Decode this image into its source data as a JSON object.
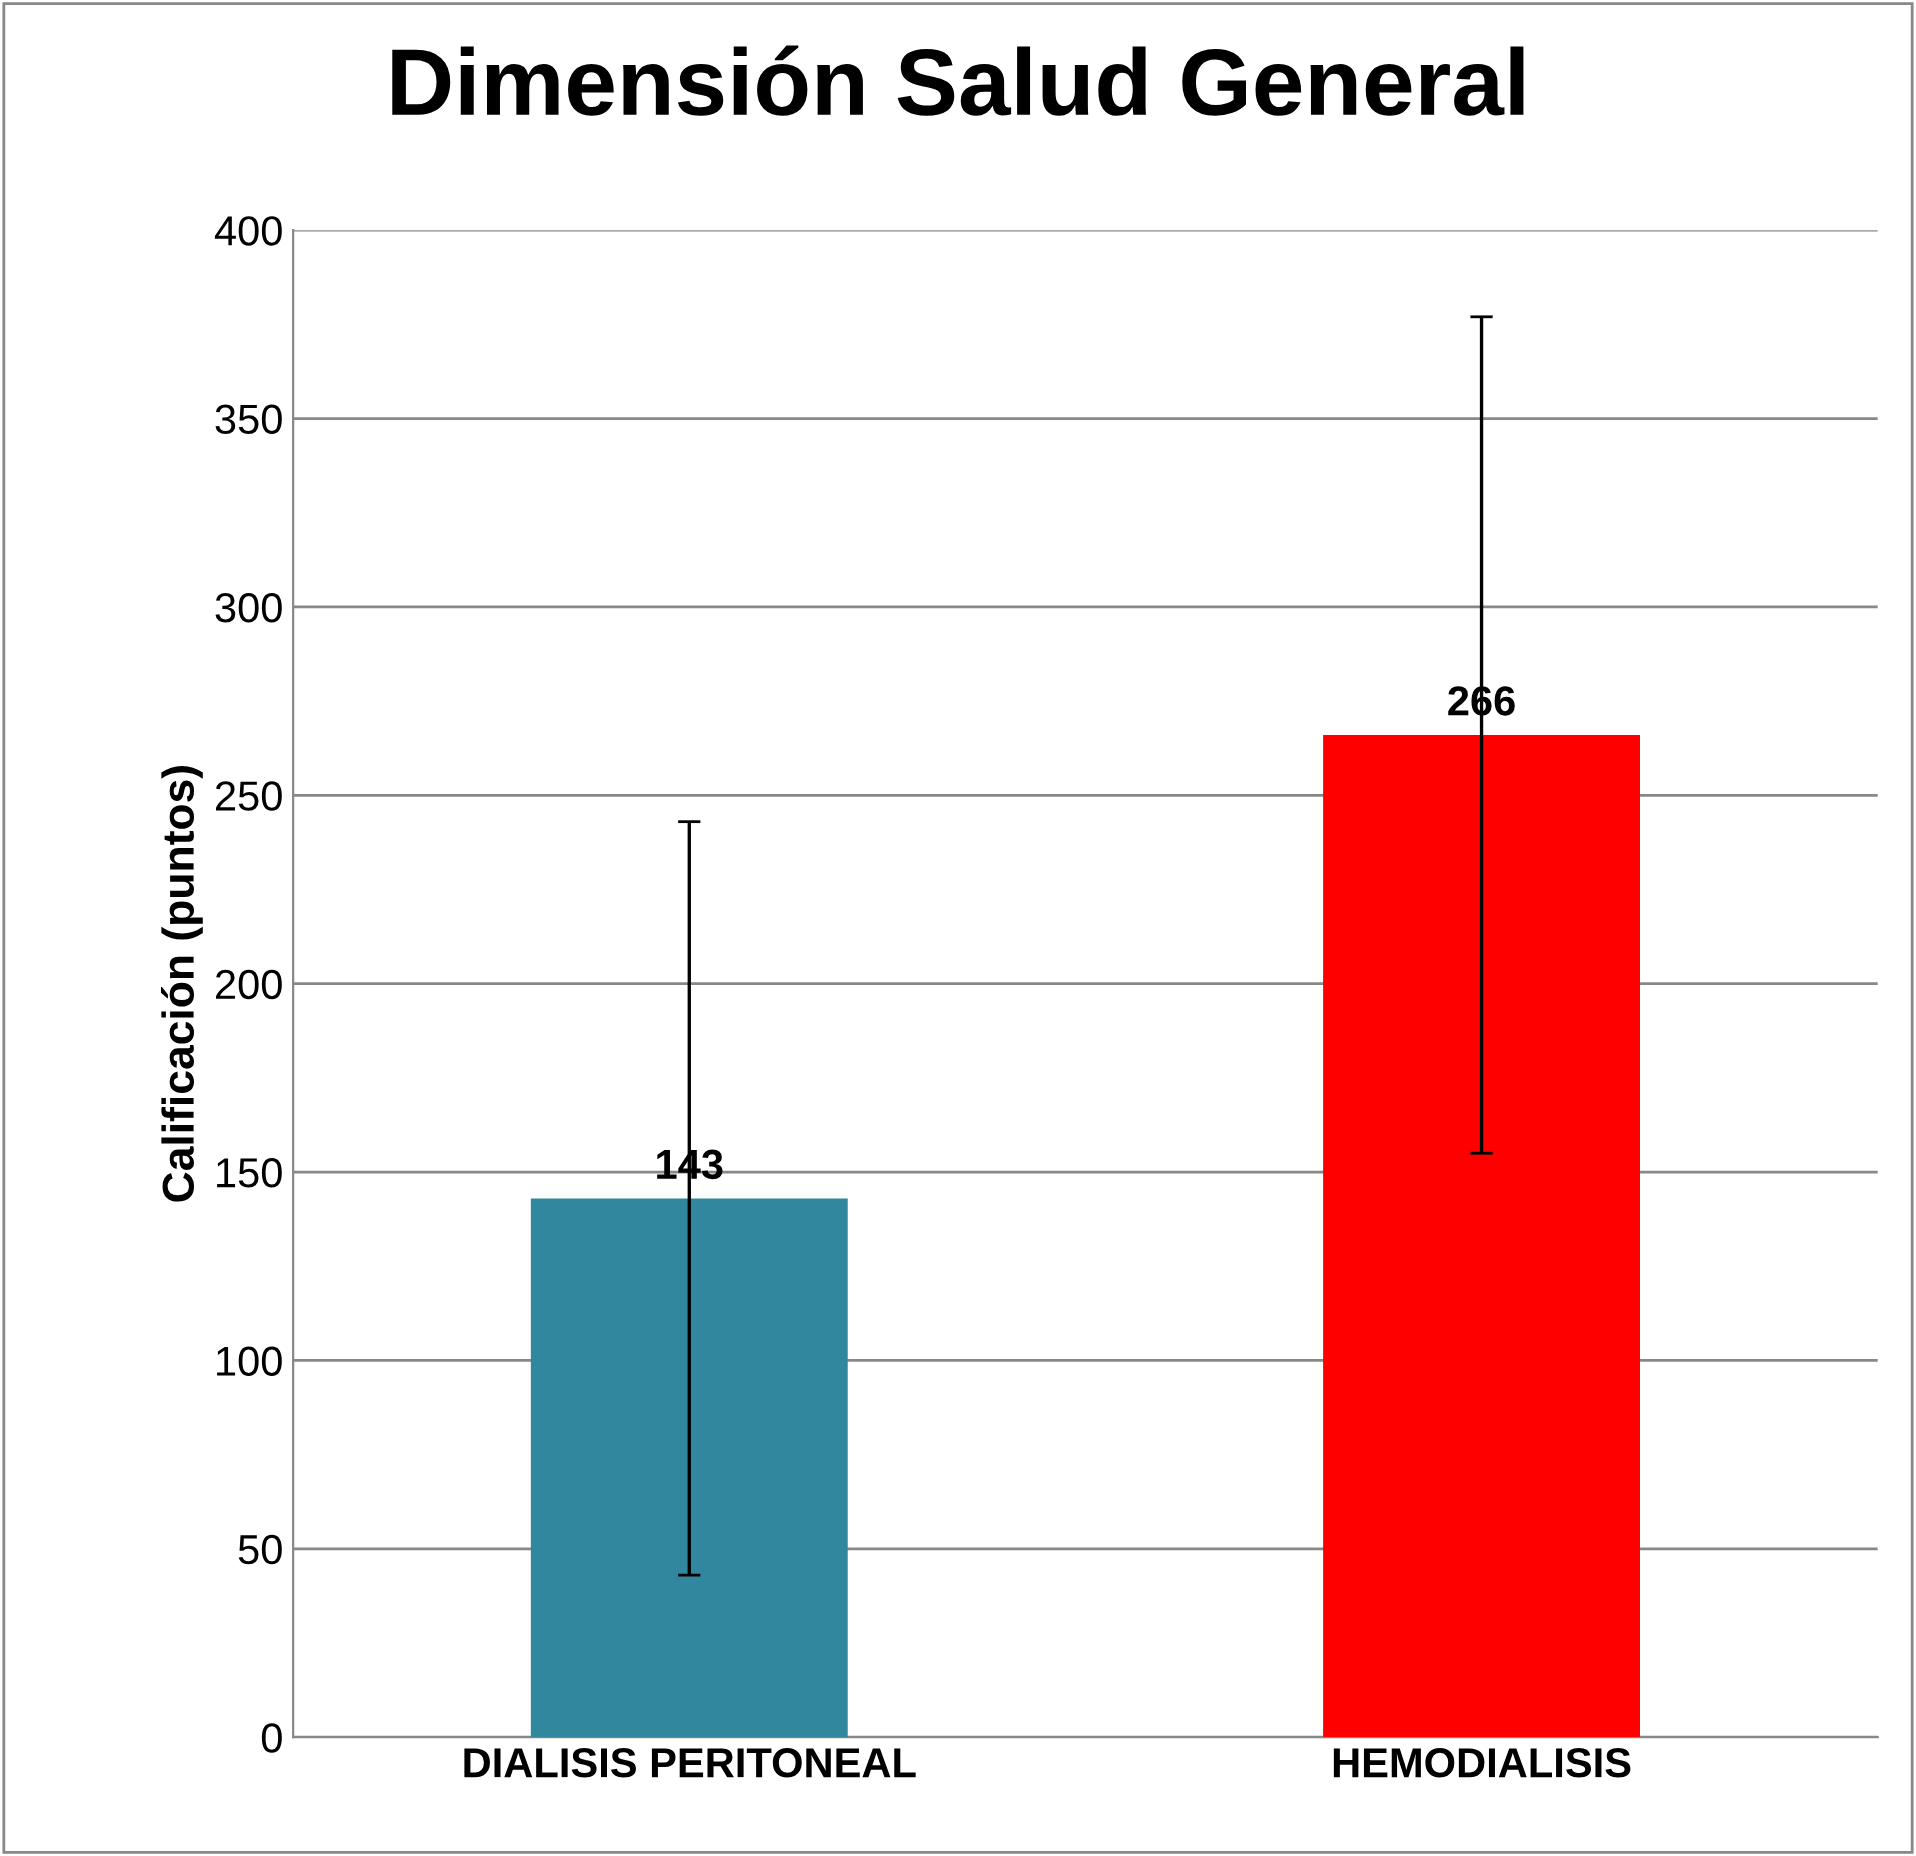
{
  "chart_data": {
    "type": "bar",
    "title": "Dimensión Salud General",
    "ylabel": "Calificación (puntos)",
    "categories": [
      "DIALISIS PERITONEAL",
      "HEMODIALISIS"
    ],
    "values": [
      143,
      266
    ],
    "colors": [
      "#31879e",
      "#ff0000"
    ],
    "errors": [
      100,
      111
    ],
    "data_labels": true,
    "ylim": [
      0,
      400
    ],
    "yticks": [
      0,
      50,
      100,
      150,
      200,
      250,
      300,
      350,
      400
    ],
    "grid": "y"
  }
}
